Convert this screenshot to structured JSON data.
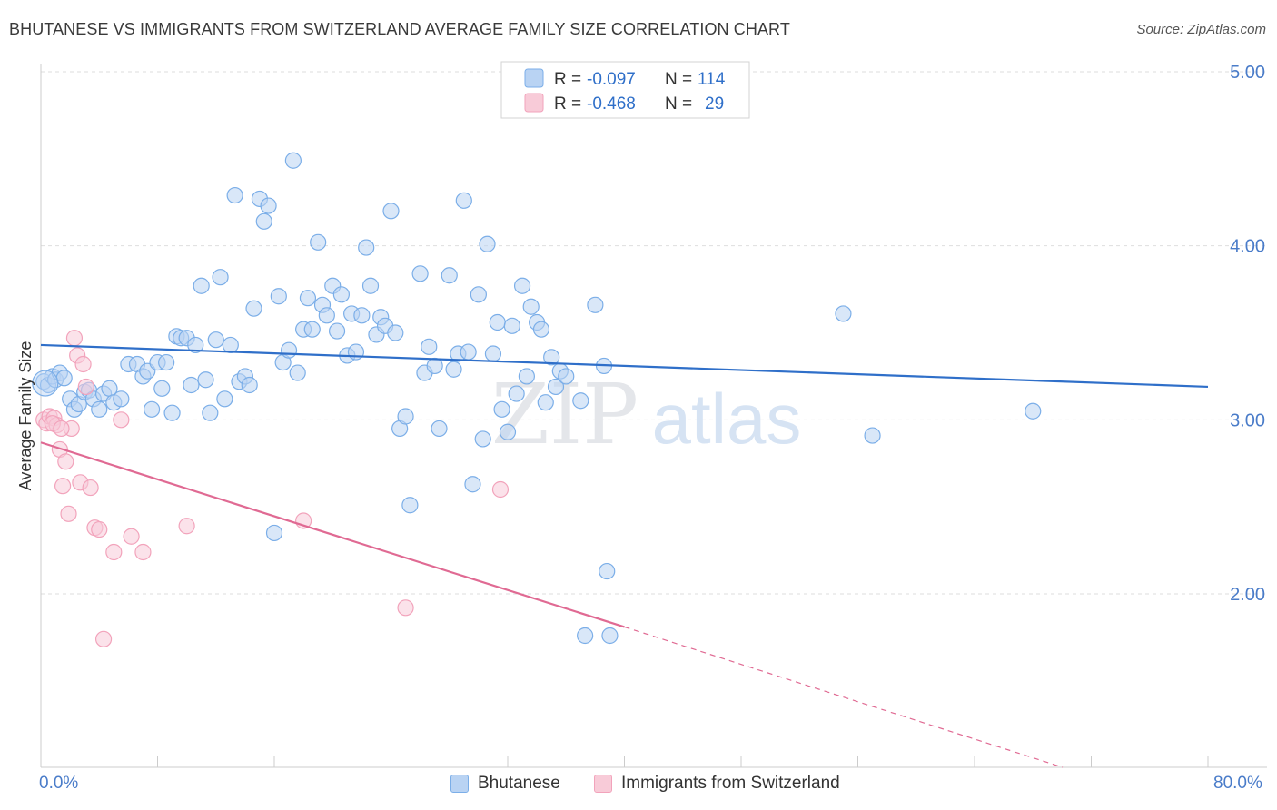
{
  "title": "BHUTANESE VS IMMIGRANTS FROM SWITZERLAND AVERAGE FAMILY SIZE CORRELATION CHART",
  "source": "Source: ZipAtlas.com",
  "watermark": {
    "zip": "ZIP",
    "atlas": "atlas"
  },
  "chart_data": {
    "type": "scatter",
    "ylabel": "Average Family Size",
    "xlim": [
      0,
      80
    ],
    "ylim": [
      1.0,
      5.1
    ],
    "x_tick_labels": [
      "0.0%",
      "80.0%"
    ],
    "y_ticks": [
      2.0,
      3.0,
      4.0,
      5.0
    ],
    "y_tick_labels": [
      "2.00",
      "3.00",
      "4.00",
      "5.00"
    ],
    "grid": true,
    "legend_position": "top-center",
    "legend": [
      {
        "r_label": "R = ",
        "r_value": "-0.097",
        "n_label": "N = ",
        "n_value": "114"
      },
      {
        "r_label": "R = ",
        "r_value": "-0.468",
        "n_label": "N = ",
        "n_value": "29"
      }
    ],
    "series": [
      {
        "name": "Bhutanese",
        "color": "#7baee8",
        "fill": "#b9d3f3",
        "line_color": "#2f6fc9",
        "trend": {
          "x0": 0,
          "y0": 3.43,
          "x1": 80,
          "y1": 3.19
        },
        "points": [
          [
            0.2,
            3.22
          ],
          [
            0.5,
            3.2
          ],
          [
            0.8,
            3.25
          ],
          [
            1.0,
            3.23
          ],
          [
            1.3,
            3.27
          ],
          [
            1.6,
            3.24
          ],
          [
            2.0,
            3.12
          ],
          [
            2.3,
            3.06
          ],
          [
            2.6,
            3.09
          ],
          [
            3.0,
            3.16
          ],
          [
            3.3,
            3.17
          ],
          [
            3.6,
            3.12
          ],
          [
            4.0,
            3.06
          ],
          [
            4.3,
            3.15
          ],
          [
            4.7,
            3.18
          ],
          [
            5.0,
            3.1
          ],
          [
            5.5,
            3.12
          ],
          [
            6.0,
            3.32
          ],
          [
            6.6,
            3.32
          ],
          [
            7.0,
            3.25
          ],
          [
            7.3,
            3.28
          ],
          [
            7.6,
            3.06
          ],
          [
            8.0,
            3.33
          ],
          [
            8.3,
            3.18
          ],
          [
            8.6,
            3.33
          ],
          [
            9.0,
            3.04
          ],
          [
            9.3,
            3.48
          ],
          [
            9.6,
            3.47
          ],
          [
            10.0,
            3.47
          ],
          [
            10.3,
            3.2
          ],
          [
            10.6,
            3.43
          ],
          [
            11.0,
            3.77
          ],
          [
            11.3,
            3.23
          ],
          [
            11.6,
            3.04
          ],
          [
            12.0,
            3.46
          ],
          [
            12.3,
            3.82
          ],
          [
            12.6,
            3.12
          ],
          [
            13.0,
            3.43
          ],
          [
            13.3,
            4.29
          ],
          [
            13.6,
            3.22
          ],
          [
            14.0,
            3.25
          ],
          [
            14.3,
            3.2
          ],
          [
            14.6,
            3.64
          ],
          [
            15.0,
            4.27
          ],
          [
            15.3,
            4.14
          ],
          [
            15.6,
            4.23
          ],
          [
            16.0,
            2.35
          ],
          [
            16.3,
            3.71
          ],
          [
            16.6,
            3.33
          ],
          [
            17.0,
            3.4
          ],
          [
            17.3,
            4.49
          ],
          [
            17.6,
            3.27
          ],
          [
            18.0,
            3.52
          ],
          [
            18.3,
            3.7
          ],
          [
            18.6,
            3.52
          ],
          [
            19.0,
            4.02
          ],
          [
            19.3,
            3.66
          ],
          [
            19.6,
            3.6
          ],
          [
            20.0,
            3.77
          ],
          [
            20.3,
            3.51
          ],
          [
            20.6,
            3.72
          ],
          [
            21.0,
            3.37
          ],
          [
            21.3,
            3.61
          ],
          [
            21.6,
            3.39
          ],
          [
            22.0,
            3.6
          ],
          [
            22.3,
            3.99
          ],
          [
            22.6,
            3.77
          ],
          [
            23.0,
            3.49
          ],
          [
            23.3,
            3.59
          ],
          [
            23.6,
            3.54
          ],
          [
            24.0,
            4.2
          ],
          [
            24.3,
            3.5
          ],
          [
            24.6,
            2.95
          ],
          [
            25.0,
            3.02
          ],
          [
            25.3,
            2.51
          ],
          [
            26.0,
            3.84
          ],
          [
            26.3,
            3.27
          ],
          [
            26.6,
            3.42
          ],
          [
            27.0,
            3.31
          ],
          [
            27.3,
            2.95
          ],
          [
            28.0,
            3.83
          ],
          [
            28.3,
            3.29
          ],
          [
            28.6,
            3.38
          ],
          [
            29.0,
            4.26
          ],
          [
            29.3,
            3.39
          ],
          [
            29.6,
            2.63
          ],
          [
            30.0,
            3.72
          ],
          [
            30.3,
            2.89
          ],
          [
            30.6,
            4.01
          ],
          [
            31.0,
            3.38
          ],
          [
            31.3,
            3.56
          ],
          [
            31.6,
            3.06
          ],
          [
            32.0,
            2.93
          ],
          [
            32.3,
            3.54
          ],
          [
            32.6,
            3.15
          ],
          [
            33.0,
            3.77
          ],
          [
            33.3,
            3.25
          ],
          [
            33.6,
            3.65
          ],
          [
            34.0,
            3.56
          ],
          [
            34.3,
            3.52
          ],
          [
            34.6,
            3.1
          ],
          [
            35.0,
            3.36
          ],
          [
            35.3,
            3.19
          ],
          [
            35.6,
            3.28
          ],
          [
            37.0,
            3.11
          ],
          [
            37.3,
            1.76
          ],
          [
            38.0,
            3.66
          ],
          [
            38.6,
            3.31
          ],
          [
            38.8,
            2.13
          ],
          [
            39.0,
            1.76
          ],
          [
            55.0,
            3.61
          ],
          [
            57.0,
            2.91
          ],
          [
            68.0,
            3.05
          ],
          [
            36.0,
            3.25
          ]
        ]
      },
      {
        "name": "Immigrants from Switzerland",
        "color": "#f2a3bb",
        "fill": "#f8cbd8",
        "line_color": "#e06a93",
        "trend": {
          "x0": 0,
          "y0": 2.87,
          "x1": 40,
          "y1": 1.81
        },
        "trend_dashed_to": {
          "x": 80,
          "y": 0.75
        },
        "points": [
          [
            0.2,
            3.0
          ],
          [
            0.4,
            2.98
          ],
          [
            0.6,
            3.02
          ],
          [
            0.9,
            3.01
          ],
          [
            1.1,
            2.97
          ],
          [
            1.3,
            2.83
          ],
          [
            1.5,
            2.62
          ],
          [
            1.7,
            2.76
          ],
          [
            1.9,
            2.46
          ],
          [
            2.1,
            2.95
          ],
          [
            2.3,
            3.47
          ],
          [
            2.5,
            3.37
          ],
          [
            2.7,
            2.64
          ],
          [
            2.9,
            3.32
          ],
          [
            3.1,
            3.19
          ],
          [
            3.4,
            2.61
          ],
          [
            3.7,
            2.38
          ],
          [
            4.0,
            2.37
          ],
          [
            4.3,
            1.74
          ],
          [
            5.0,
            2.24
          ],
          [
            5.5,
            3.0
          ],
          [
            6.2,
            2.33
          ],
          [
            7.0,
            2.24
          ],
          [
            10.0,
            2.39
          ],
          [
            18.0,
            2.42
          ],
          [
            25.0,
            1.92
          ],
          [
            31.5,
            2.6
          ],
          [
            0.8,
            2.98
          ],
          [
            1.4,
            2.95
          ]
        ]
      }
    ]
  }
}
